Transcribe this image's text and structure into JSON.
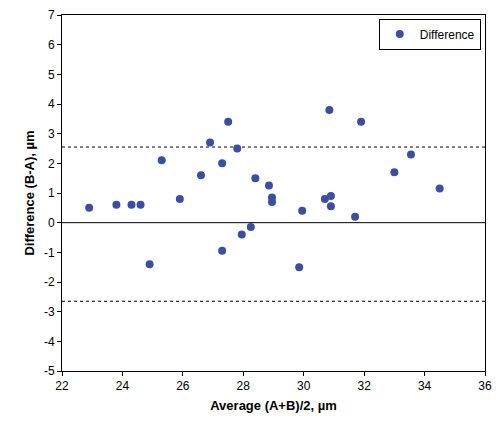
{
  "chart_data": {
    "type": "scatter",
    "x_label": "Average (A+B)/2, µm",
    "y_label": "Difference (B-A), µm",
    "series": [
      {
        "name": "Difference",
        "color": "#3b4fa0",
        "marker": "circle",
        "x": [
          22.9,
          23.8,
          24.3,
          24.6,
          24.9,
          25.3,
          25.9,
          26.6,
          26.9,
          27.3,
          27.3,
          27.5,
          27.8,
          27.95,
          28.25,
          28.4,
          28.85,
          28.95,
          28.95,
          29.85,
          29.95,
          30.7,
          30.85,
          30.9,
          30.9,
          31.7,
          31.9,
          33.0,
          33.55,
          34.5
        ],
        "values": [
          0.5,
          0.6,
          0.6,
          0.6,
          -1.4,
          2.1,
          0.8,
          1.6,
          2.7,
          2.0,
          -0.95,
          3.4,
          2.5,
          -0.4,
          -0.15,
          1.5,
          1.25,
          0.85,
          0.7,
          -1.5,
          0.4,
          0.8,
          3.8,
          0.9,
          0.55,
          0.2,
          3.4,
          1.7,
          2.3,
          1.15
        ]
      }
    ],
    "reference_lines": [
      {
        "value": 0,
        "line_style": "solid"
      },
      {
        "value": 2.55,
        "line_style": "dotted"
      },
      {
        "value": -2.65,
        "line_style": "dotted"
      }
    ],
    "xlim": [
      22,
      36
    ],
    "xticks": [
      22,
      24,
      26,
      28,
      30,
      32,
      34,
      36
    ],
    "ylim": [
      -5,
      7
    ],
    "yticks": [
      -5,
      -4,
      -3,
      -2,
      -1,
      0,
      1,
      2,
      3,
      4,
      5,
      6,
      7
    ],
    "grid": false,
    "legend": "top-right"
  }
}
